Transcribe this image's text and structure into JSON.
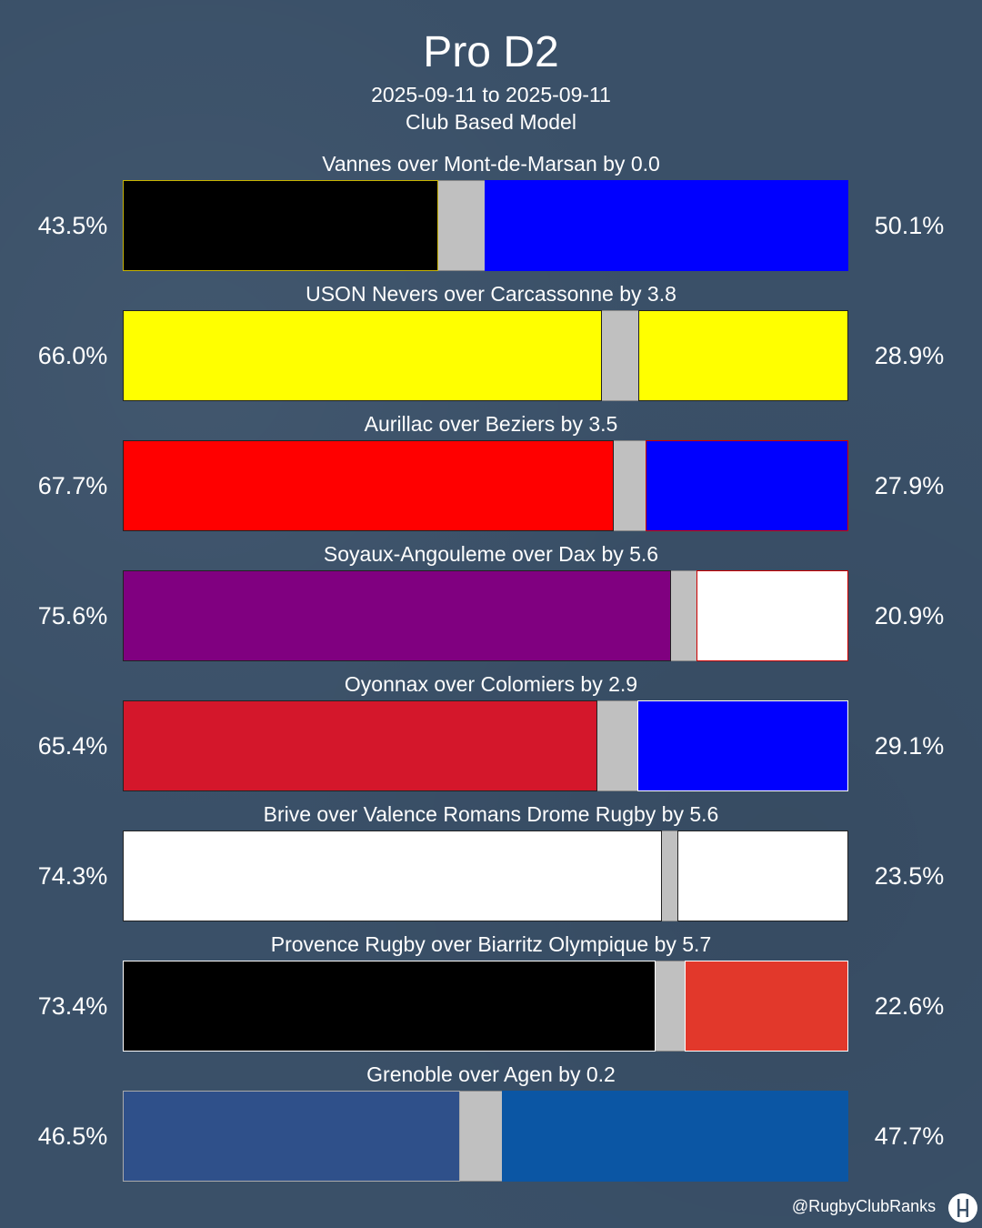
{
  "title": "Pro D2",
  "date_range": "2025-09-11 to 2025-09-11",
  "model": "Club Based Model",
  "watermark": "@RugbyClubRanks",
  "chart_data": {
    "type": "bar",
    "orientation": "horizontal-stacked-100",
    "segments": [
      "home win",
      "draw",
      "away win"
    ],
    "matches": [
      {
        "label": "Vannes over Mont-de-Marsan by 0.0",
        "home_pct": 43.5,
        "away_pct": 50.1,
        "home_label": "43.5%",
        "away_label": "50.1%",
        "home_color": "#000000",
        "away_color": "#0000ff",
        "home_border": "#c8b400",
        "away_border": "#0000ff"
      },
      {
        "label": "USON Nevers over Carcassonne by 3.8",
        "home_pct": 66.0,
        "away_pct": 28.9,
        "home_label": "66.0%",
        "away_label": "28.9%",
        "home_color": "#ffff00",
        "away_color": "#ffff00",
        "home_border": "#222222",
        "away_border": "#222222"
      },
      {
        "label": "Aurillac over Beziers by 3.5",
        "home_pct": 67.7,
        "away_pct": 27.9,
        "home_label": "67.7%",
        "away_label": "27.9%",
        "home_color": "#ff0000",
        "away_color": "#0000ff",
        "home_border": "#222222",
        "away_border": "#cc0000"
      },
      {
        "label": "Soyaux-Angouleme over Dax by 5.6",
        "home_pct": 75.6,
        "away_pct": 20.9,
        "home_label": "75.6%",
        "away_label": "20.9%",
        "home_color": "#800080",
        "away_color": "#ffffff",
        "home_border": "#222222",
        "away_border": "#cc0000"
      },
      {
        "label": "Oyonnax over Colomiers by 2.9",
        "home_pct": 65.4,
        "away_pct": 29.1,
        "home_label": "65.4%",
        "away_label": "29.1%",
        "home_color": "#d4172b",
        "away_color": "#0000ff",
        "home_border": "#222222",
        "away_border": "#ffffff"
      },
      {
        "label": "Brive over Valence Romans Drome Rugby by 5.6",
        "home_pct": 74.3,
        "away_pct": 23.5,
        "home_label": "74.3%",
        "away_label": "23.5%",
        "home_color": "#ffffff",
        "away_color": "#ffffff",
        "home_border": "#222222",
        "away_border": "#222222"
      },
      {
        "label": "Provence Rugby over Biarritz Olympique by 5.7",
        "home_pct": 73.4,
        "away_pct": 22.6,
        "home_label": "73.4%",
        "away_label": "22.6%",
        "home_color": "#000000",
        "away_color": "#e2382b",
        "home_border": "#ffffff",
        "away_border": "#ffffff"
      },
      {
        "label": "Grenoble over Agen by 0.2",
        "home_pct": 46.5,
        "away_pct": 47.7,
        "home_label": "46.5%",
        "away_label": "47.7%",
        "home_color": "#2f508a",
        "away_color": "#0b56a4",
        "home_border": "#aaaaaa",
        "away_border": "#0b56a4"
      }
    ],
    "draw_color": "#c0c0c0"
  }
}
